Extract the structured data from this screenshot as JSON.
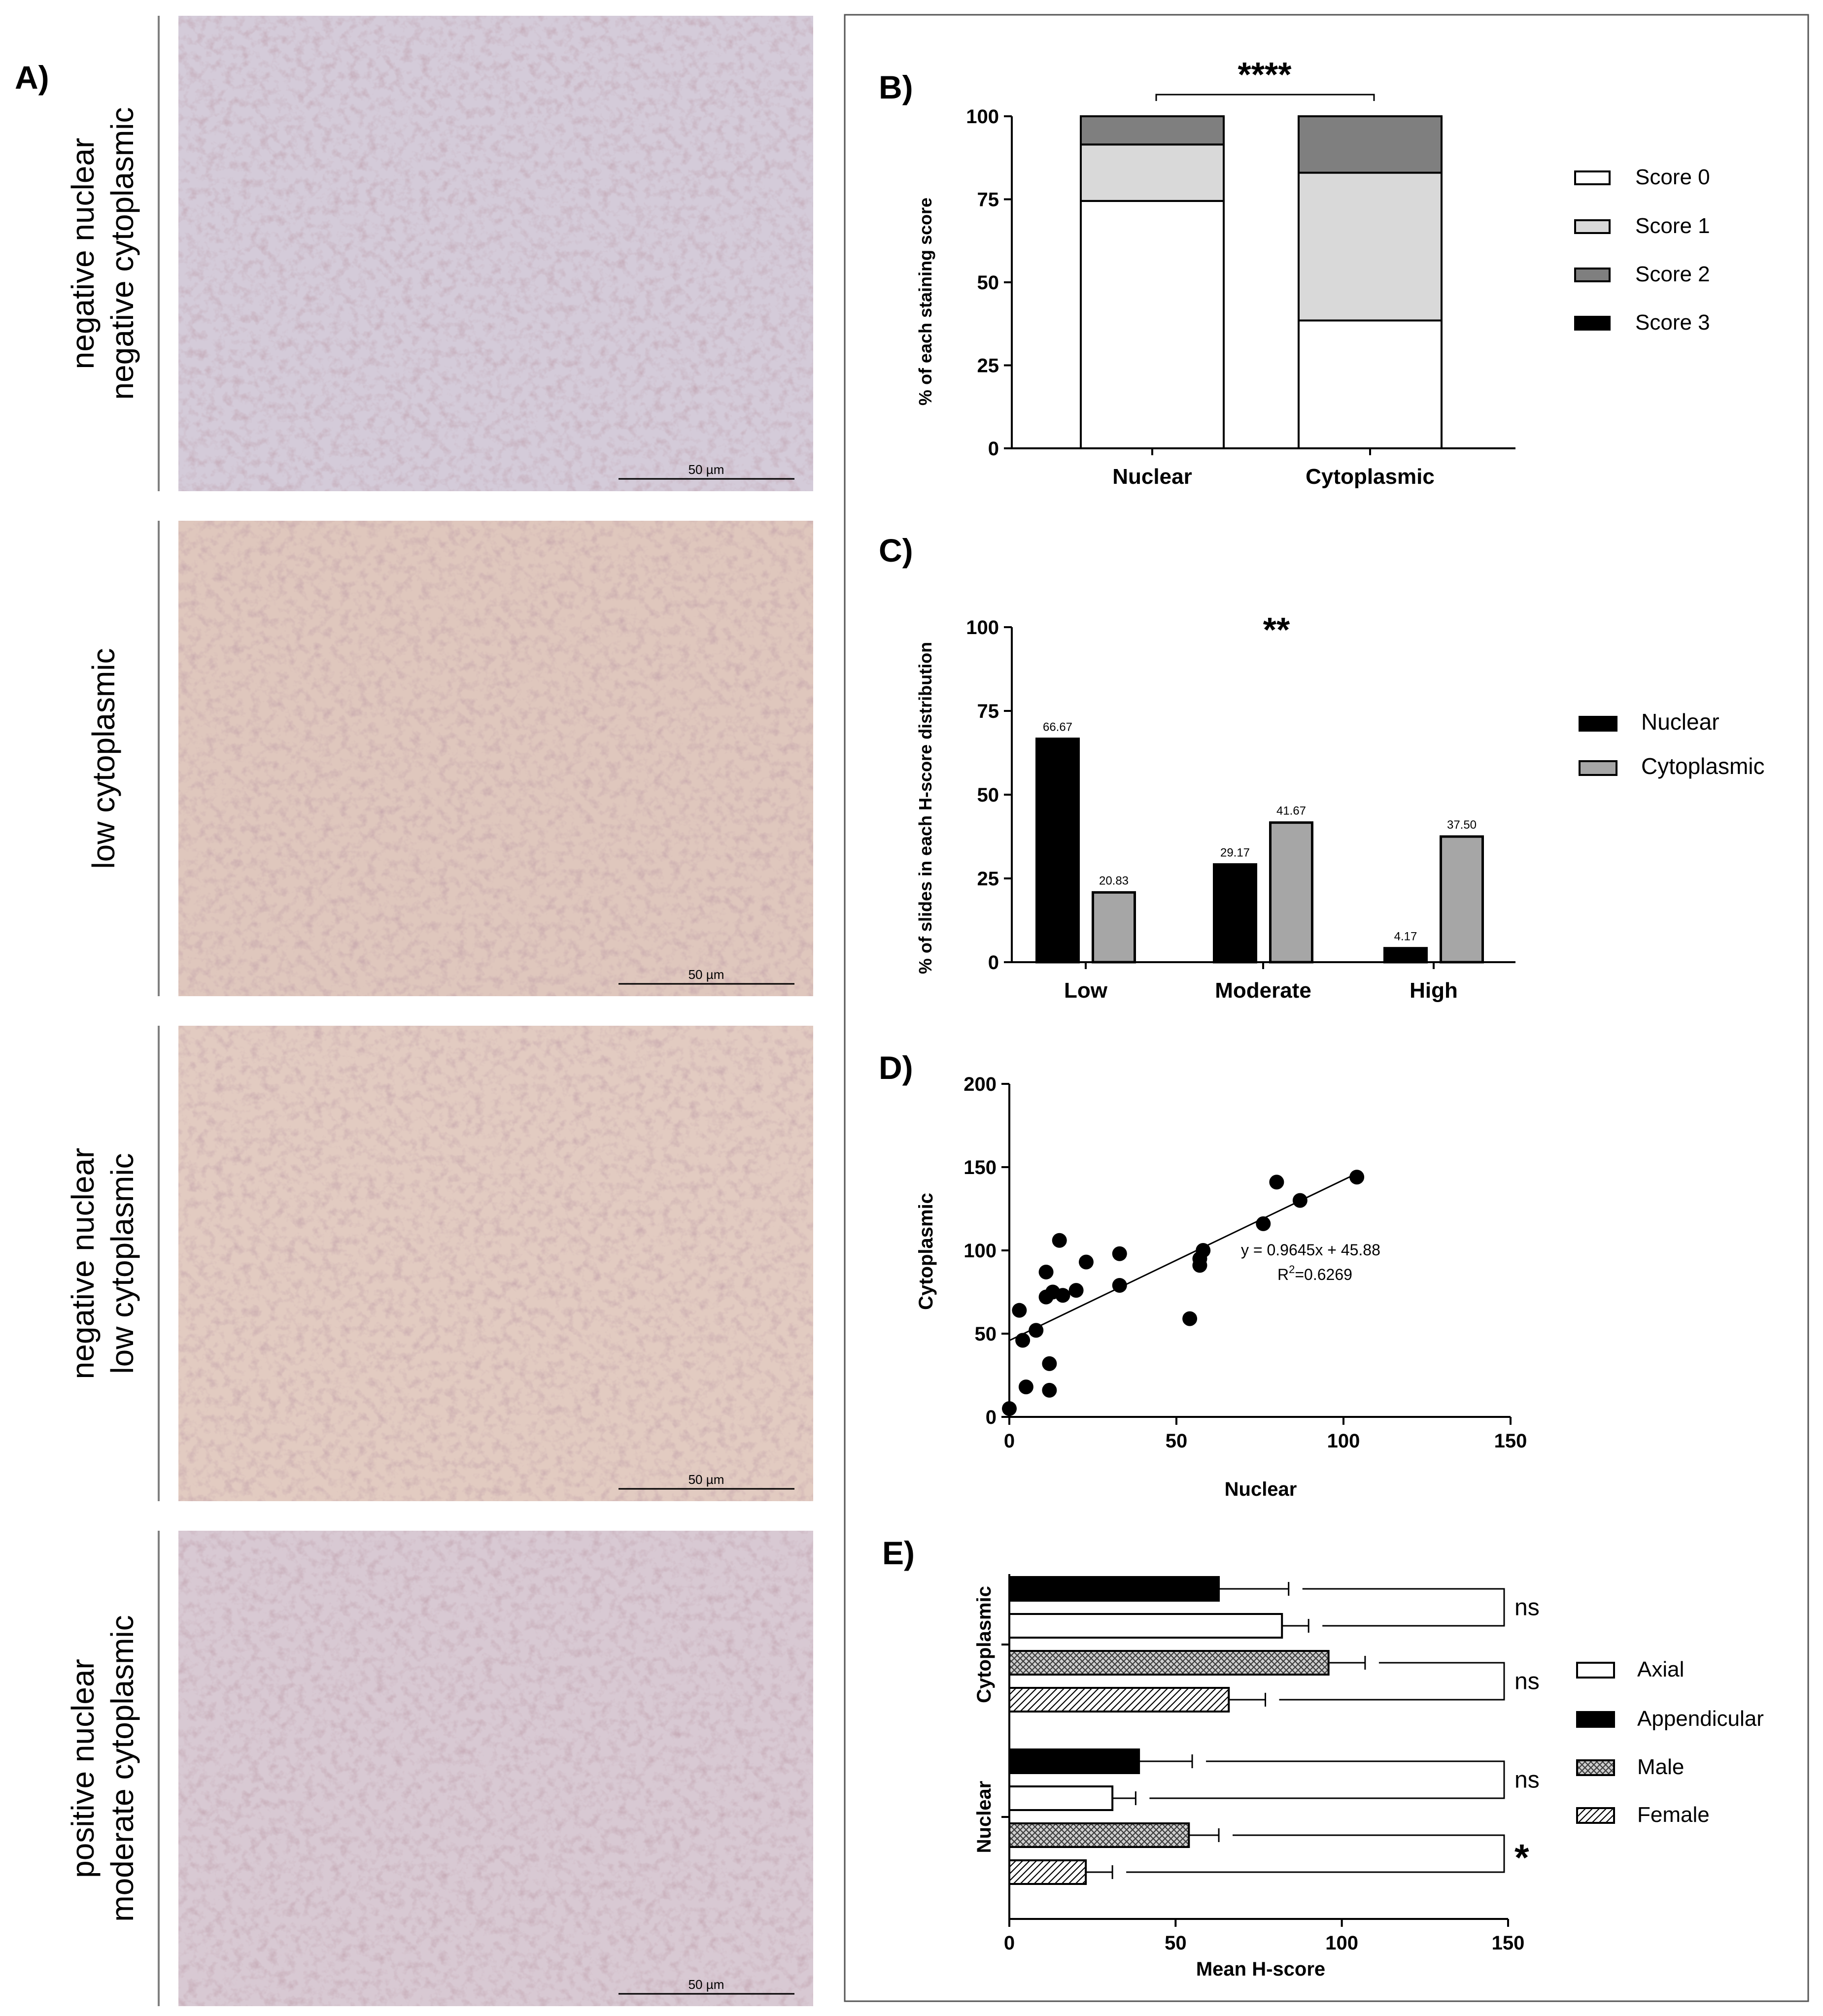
{
  "panel_a": {
    "label": "A)",
    "scale_bar_label": "50 µm",
    "rows": [
      {
        "line1": "negative nuclear",
        "line2": "negative cytoplasmic"
      },
      {
        "line1": "low cytoplasmic",
        "line2": ""
      },
      {
        "line1": "negative nuclear",
        "line2": "low cytoplasmic"
      },
      {
        "line1": "positive nuclear",
        "line2": "moderate cytoplasmic"
      }
    ]
  },
  "colors": {
    "score0": "#ffffff",
    "score1": "#d9d9d9",
    "score2": "#7f7f7f",
    "score3": "#000000",
    "nuclear": "#000000",
    "cytoplasmic": "#a6a6a6"
  },
  "chart_data": [
    {
      "panel": "B)",
      "type": "bar",
      "stacked": true,
      "categories": [
        "Nuclear",
        "Cytoplasmic"
      ],
      "series": [
        {
          "name": "Score 0",
          "values": [
            74.5,
            38.5
          ]
        },
        {
          "name": "Score 1",
          "values": [
            17,
            44.5
          ]
        },
        {
          "name": "Score 2",
          "values": [
            8.5,
            17
          ]
        },
        {
          "name": "Score 3",
          "values": [
            0,
            0
          ]
        }
      ],
      "ylabel": "% of each staining score",
      "ylim": [
        0,
        100
      ],
      "yticks": [
        "0",
        "25",
        "50",
        "75",
        "100"
      ],
      "significance": "****",
      "legend": "right"
    },
    {
      "panel": "C)",
      "type": "bar",
      "categories": [
        "Low",
        "Moderate",
        "High"
      ],
      "series": [
        {
          "name": "Nuclear",
          "values": [
            66.67,
            29.17,
            4.17
          ],
          "labels": [
            "66.67",
            "29.17",
            "4.17"
          ]
        },
        {
          "name": "Cytoplasmic",
          "values": [
            20.83,
            41.67,
            37.5
          ],
          "labels": [
            "20.83",
            "41.67",
            "37.50"
          ]
        }
      ],
      "ylabel": "% of slides in each  H-score distribution",
      "ylim": [
        0,
        100
      ],
      "yticks": [
        "0",
        "25",
        "50",
        "75",
        "100"
      ],
      "significance": "**",
      "legend": "right"
    },
    {
      "panel": "D)",
      "type": "scatter",
      "xlabel": "Nuclear",
      "ylabel": "Cytoplasmic",
      "xlim": [
        0,
        150
      ],
      "ylim": [
        0,
        200
      ],
      "xticks": [
        "0",
        "50",
        "100",
        "150"
      ],
      "yticks": [
        "0",
        "50",
        "100",
        "150",
        "200"
      ],
      "points": [
        [
          0,
          5
        ],
        [
          3,
          64
        ],
        [
          4,
          46
        ],
        [
          5,
          18
        ],
        [
          8,
          52
        ],
        [
          11,
          87
        ],
        [
          11,
          72
        ],
        [
          12,
          32
        ],
        [
          12,
          16
        ],
        [
          13,
          75
        ],
        [
          15,
          106
        ],
        [
          16,
          73
        ],
        [
          20,
          76
        ],
        [
          23,
          93
        ],
        [
          33,
          98
        ],
        [
          33,
          79
        ],
        [
          54,
          59
        ],
        [
          57,
          91
        ],
        [
          57,
          95
        ],
        [
          58,
          100
        ],
        [
          76,
          116
        ],
        [
          80,
          141
        ],
        [
          87,
          130
        ],
        [
          104,
          144
        ]
      ],
      "fit": {
        "slope": 0.9645,
        "intercept": 45.88,
        "x_range": [
          0,
          104
        ]
      },
      "equation": "y = 0.9645x + 45.88",
      "r2_prefix": "R",
      "r2_sup": "2",
      "r2_value": "=0.6269"
    },
    {
      "panel": "E)",
      "type": "bar",
      "orientation": "horizontal",
      "xlabel": "Mean H-score",
      "xlim": [
        0,
        150
      ],
      "xticks": [
        "0",
        "50",
        "100",
        "150"
      ],
      "groups": [
        {
          "name": "Cytoplasmic",
          "bars": [
            {
              "series": "Appendicular",
              "value": 63,
              "error": 21
            },
            {
              "series": "Axial",
              "value": 82,
              "error": 8
            },
            {
              "series": "Male",
              "value": 96,
              "error": 11
            },
            {
              "series": "Female",
              "value": 66,
              "error": 11
            }
          ],
          "significance": [
            "ns",
            "ns"
          ]
        },
        {
          "name": "Nuclear",
          "bars": [
            {
              "series": "Appendicular",
              "value": 39,
              "error": 16
            },
            {
              "series": "Axial",
              "value": 31,
              "error": 7
            },
            {
              "series": "Male",
              "value": 54,
              "error": 9
            },
            {
              "series": "Female",
              "value": 23,
              "error": 8
            }
          ],
          "significance": [
            "ns",
            "*"
          ]
        }
      ],
      "legend_order": [
        "Axial",
        "Appendicular",
        "Male",
        "Female"
      ],
      "legend": "right"
    }
  ]
}
